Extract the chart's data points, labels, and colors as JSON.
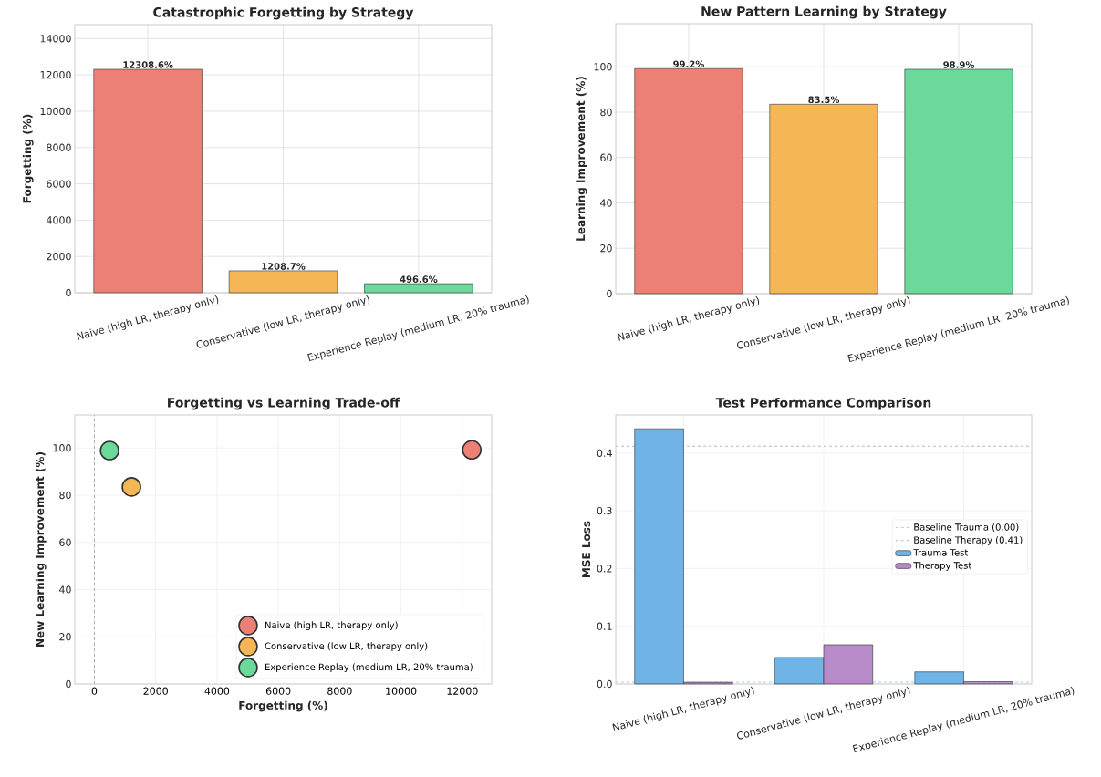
{
  "chart_data": [
    {
      "type": "bar",
      "title": "Catastrophic Forgetting by Strategy",
      "ylabel": "Forgetting (%)",
      "categories": [
        "Naive (high LR, therapy only)",
        "Conservative (low LR, therapy only)",
        "Experience Replay (medium LR, 20% trauma)"
      ],
      "values": [
        12308.6,
        1208.7,
        496.6
      ],
      "colors": [
        "#ec8074",
        "#f5b756",
        "#6ad99a"
      ],
      "value_labels": [
        "12308.6%",
        "1208.7%",
        "496.6%"
      ],
      "ylim": [
        0,
        14770
      ],
      "yticks": [
        0,
        2000,
        4000,
        6000,
        8000,
        10000,
        12000,
        14000
      ],
      "grid": true
    },
    {
      "type": "bar",
      "title": "New Pattern Learning by Strategy",
      "ylabel": "Learning Improvement (%)",
      "categories": [
        "Naive (high LR, therapy only)",
        "Conservative (low LR, therapy only)",
        "Experience Replay (medium LR, 20% trauma)"
      ],
      "values": [
        99.2,
        83.5,
        98.9
      ],
      "colors": [
        "#ec8074",
        "#f5b756",
        "#6ad99a"
      ],
      "value_labels": [
        "99.2%",
        "83.5%",
        "98.9%"
      ],
      "ylim": [
        0,
        119
      ],
      "yticks": [
        0,
        20,
        40,
        60,
        80,
        100
      ],
      "grid": true
    },
    {
      "type": "scatter",
      "title": "Forgetting vs Learning Trade-off",
      "xlabel": "Forgetting (%)",
      "ylabel": "New Learning Improvement (%)",
      "series": [
        {
          "name": "Naive (high LR, therapy only)",
          "color": "#ec8074",
          "x": [
            12308.6
          ],
          "values": [
            99.2
          ]
        },
        {
          "name": "Conservative (low LR, therapy only)",
          "color": "#f5b756",
          "x": [
            1208.7
          ],
          "values": [
            83.5
          ]
        },
        {
          "name": "Experience Replay (medium LR, 20% trauma)",
          "color": "#6ad99a",
          "x": [
            496.6
          ],
          "values": [
            98.9
          ]
        }
      ],
      "xlim": [
        -638,
        12957
      ],
      "xticks": [
        0,
        2000,
        4000,
        6000,
        8000,
        10000,
        12000
      ],
      "ylim": [
        0,
        114
      ],
      "yticks": [
        0,
        20,
        40,
        60,
        80,
        100
      ],
      "ref_lines": [
        {
          "axis": "x",
          "value": 0,
          "color": "#aaaaaa",
          "line_style": "dashed"
        }
      ],
      "legend": "bottom right",
      "grid": true
    },
    {
      "type": "bar",
      "title": "Test Performance Comparison",
      "ylabel": "MSE Loss",
      "categories": [
        "Naive (high LR, therapy only)",
        "Conservative (low LR, therapy only)",
        "Experience Replay (medium LR, 20% trauma)"
      ],
      "series": [
        {
          "name": "Trauma Test",
          "color": "#70b3e6",
          "values": [
            0.442,
            0.046,
            0.021
          ]
        },
        {
          "name": "Therapy Test",
          "color": "#b78ac9",
          "values": [
            0.003,
            0.068,
            0.004
          ]
        }
      ],
      "ref_lines": [
        {
          "axis": "y",
          "value": 0.003,
          "label": "Baseline Trauma (0.00)",
          "color": "#a6d4ec",
          "line_style": "dashed"
        },
        {
          "axis": "y",
          "value": 0.412,
          "label": "Baseline Therapy (0.41)",
          "color": "#cfa9dc",
          "line_style": "dashed"
        }
      ],
      "ylim": [
        0,
        0.466
      ],
      "yticks": [
        {
          "value": 0,
          "label": "0.0"
        },
        0.1,
        0.2,
        0.3,
        0.4
      ],
      "legend": "center right",
      "grid": true
    }
  ]
}
